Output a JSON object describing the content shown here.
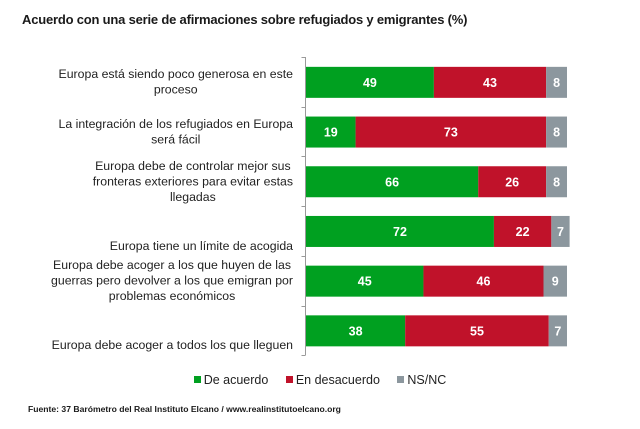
{
  "chart_data": {
    "type": "bar",
    "orientation": "horizontal",
    "stacked": true,
    "title": "Acuerdo con una serie de afirmaciones sobre refugiados y emigrantes (%)",
    "xlabel": "",
    "ylabel": "",
    "xlim": [
      0,
      100
    ],
    "grid": false,
    "legend_position": "bottom",
    "categories": [
      [
        "Europa está siendo poco generosa en este",
        "proceso"
      ],
      [
        "La integración de los refugiados en Europa",
        "será fácil"
      ],
      [
        "Europa debe de controlar mejor sus",
        "fronteras exteriores para evitar estas",
        "llegadas"
      ],
      [
        "Europa tiene un límite de acogida"
      ],
      [
        "Europa debe acoger a los que huyen de las",
        "guerras pero devolver a los que emigran por",
        "problemas económicos"
      ],
      [
        "Europa debe acoger a todos los que lleguen"
      ]
    ],
    "series": [
      {
        "name": "De acuerdo",
        "color": "#00A020",
        "values": [
          49,
          19,
          66,
          72,
          45,
          38
        ]
      },
      {
        "name": "En desacuerdo",
        "color": "#C0122A",
        "values": [
          43,
          73,
          26,
          22,
          46,
          55
        ]
      },
      {
        "name": "NS/NC",
        "color": "#8C979E",
        "values": [
          8,
          8,
          8,
          7,
          9,
          7
        ]
      }
    ],
    "source": "Fuente: 37 Barómetro del Real Instituto Elcano / www.realinstitutoelcano.org"
  }
}
